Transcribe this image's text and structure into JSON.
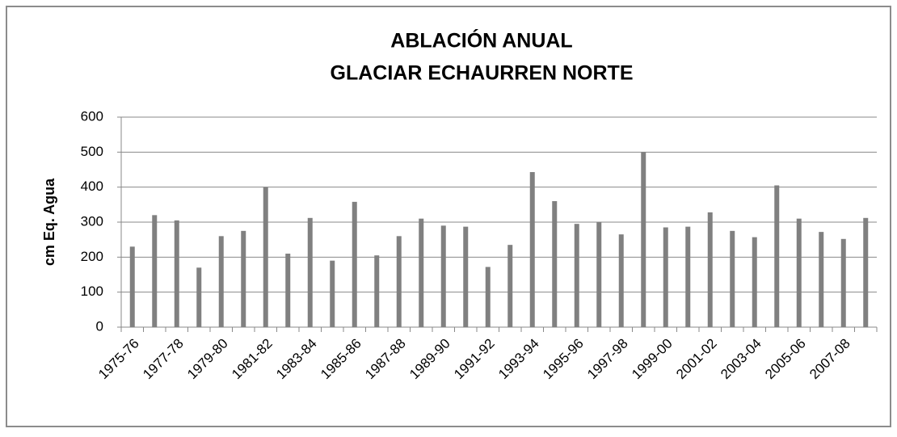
{
  "chart_data": {
    "type": "bar",
    "title": "ABLACIÓN ANUAL",
    "subtitle": "GLACIAR ECHAURREN NORTE",
    "y_label": "cm Eq. Agua",
    "categories": [
      "1975-76",
      null,
      "1977-78",
      null,
      "1979-80",
      null,
      "1981-82",
      null,
      "1983-84",
      null,
      "1985-86",
      null,
      "1987-88",
      null,
      "1989-90",
      null,
      "1991-92",
      null,
      "1993-94",
      null,
      "1995-96",
      null,
      "1997-98",
      null,
      "1999-00",
      null,
      "2001-02",
      null,
      "2003-04",
      null,
      "2005-06",
      null,
      "2007-08",
      null
    ],
    "values": [
      230,
      320,
      305,
      170,
      260,
      275,
      400,
      210,
      312,
      190,
      358,
      205,
      260,
      310,
      290,
      287,
      172,
      235,
      443,
      360,
      295,
      300,
      265,
      500,
      285,
      287,
      328,
      275,
      257,
      405,
      310,
      272,
      252,
      312
    ],
    "color": "#808080",
    "ylim": [
      0,
      600
    ],
    "yticks": [
      0,
      100,
      200,
      300,
      400,
      500,
      600
    ],
    "grid": true
  }
}
